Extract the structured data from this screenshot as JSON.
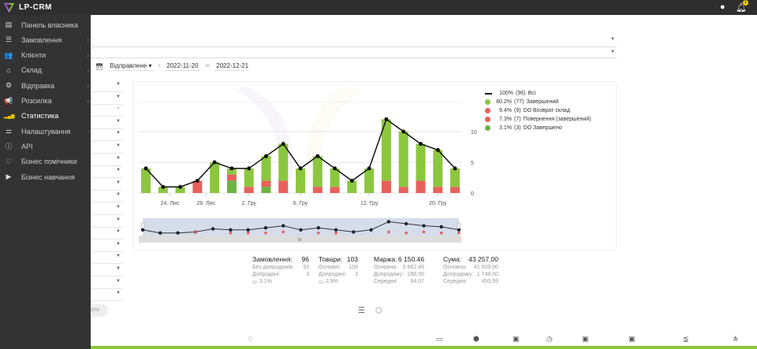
{
  "app": {
    "name": "LP-CRM",
    "notification_count": "1"
  },
  "sidebar": {
    "items": [
      {
        "label": "Панель власника",
        "icon": "dashboard-icon",
        "glyph": "▤",
        "chev": false
      },
      {
        "label": "Замовлення",
        "icon": "orders-list-icon",
        "glyph": "☰",
        "chev": true
      },
      {
        "label": "Клієнти",
        "icon": "users-icon",
        "glyph": "👥",
        "chev": true
      },
      {
        "label": "Склад",
        "icon": "warehouse-icon",
        "glyph": "⌂",
        "chev": true
      },
      {
        "label": "Відправка",
        "icon": "shipping-icon",
        "glyph": "⚙",
        "chev": true
      },
      {
        "label": "Розсилка",
        "icon": "megaphone-icon",
        "glyph": "📢",
        "chev": true
      },
      {
        "label": "Статистика",
        "icon": "bar-chart-icon",
        "glyph": "▂▄▆",
        "chev": false,
        "active": true
      },
      {
        "label": "Налаштування",
        "icon": "sliders-icon",
        "glyph": "⚌",
        "chev": true
      },
      {
        "label": "API",
        "icon": "info-icon",
        "glyph": "ⓘ",
        "chev": false
      },
      {
        "label": "Бізнес помічники",
        "icon": "handshake-icon",
        "glyph": "♡",
        "chev": false
      },
      {
        "label": "Бізнес навчання",
        "icon": "video-icon",
        "glyph": "▶",
        "chev": false
      }
    ]
  },
  "filters": {
    "date_type": "Відправлене",
    "from_label": "з",
    "from": "2022-11-20",
    "to_label": "по",
    "to": "2022-12-21"
  },
  "apply_button": "ати",
  "legend": [
    {
      "pct": "100%",
      "count": "(96)",
      "name": "Всі",
      "color": "#111111",
      "type": "line"
    },
    {
      "pct": "80.2%",
      "count": "(77)",
      "name": "Завершений",
      "color": "#8cc63f",
      "type": "dot"
    },
    {
      "pct": "9.4%",
      "count": "(9)",
      "name": "DO Возврат склад",
      "color": "#e8605a",
      "type": "dot"
    },
    {
      "pct": "7.3%",
      "count": "(7)",
      "name": "Повернення (завершений)",
      "color": "#e8605a",
      "type": "dot"
    },
    {
      "pct": "3.1%",
      "count": "(3)",
      "name": "DO Завершено",
      "color": "#6db33f",
      "type": "dot"
    }
  ],
  "chart_data": {
    "type": "bar",
    "stacked": true,
    "series": [
      {
        "name": "DO Завершено",
        "color": "#6db33f",
        "values": [
          0,
          0,
          0,
          0,
          0,
          2,
          0,
          1,
          0,
          0,
          0,
          0,
          0,
          0,
          0,
          0,
          0,
          0,
          0
        ]
      },
      {
        "color": "#e8605a",
        "values": [
          0,
          0,
          0,
          2,
          0,
          1,
          1,
          1,
          2,
          0,
          1,
          1,
          0,
          0,
          2,
          1,
          2,
          1,
          1
        ]
      },
      {
        "name": "Завершений",
        "color": "#8cc63f",
        "values": [
          4,
          1,
          1,
          0,
          5,
          1,
          3,
          4,
          6,
          4,
          5,
          3,
          2,
          4,
          10,
          9,
          6,
          6,
          3
        ]
      },
      {
        "name": "Всі",
        "type": "line",
        "color": "#111111",
        "values": [
          4,
          1,
          1,
          2,
          5,
          4,
          4,
          6,
          8,
          4,
          6,
          4,
          2,
          4,
          12,
          10,
          8,
          7,
          4
        ]
      }
    ],
    "xticks": [
      {
        "label": "24. Лис",
        "at": 1.4
      },
      {
        "label": "28. Лис",
        "at": 3.5
      },
      {
        "label": "2. Гру",
        "at": 6
      },
      {
        "label": "6. Гру",
        "at": 9
      },
      {
        "label": "12. Гру",
        "at": 13
      },
      {
        "label": "20. Гру",
        "at": 17
      }
    ],
    "yticks": [
      "0",
      "5",
      "10"
    ],
    "ylim": [
      0,
      15
    ],
    "grid": true
  },
  "stats": {
    "orders": {
      "title": "Замовлення:",
      "value": "96",
      "rows": [
        [
          "Без допродажів:",
          "93"
        ],
        [
          "Допродані:",
          "3"
        ],
        [
          "",
          "3.1%"
        ]
      ]
    },
    "goods": {
      "title": "Товари:",
      "value": "103",
      "rows": [
        [
          "Основні:",
          "100"
        ],
        [
          "Допродані:",
          "3"
        ],
        [
          "",
          "2.9%"
        ]
      ]
    },
    "margin": {
      "title": "Маржа:",
      "value": "6 150.46",
      "rows": [
        [
          "Основна:",
          "5 862.46"
        ],
        [
          "Допродажу:",
          "288.00"
        ],
        [
          "Середня:",
          "64.07"
        ]
      ]
    },
    "sum": {
      "title": "Сума:",
      "value": "43 257.00",
      "rows": [
        [
          "Основна:",
          "41 509.00"
        ],
        [
          "Допродажу:",
          "1 748.00"
        ],
        [
          "Середня:",
          "450.59"
        ]
      ]
    }
  }
}
